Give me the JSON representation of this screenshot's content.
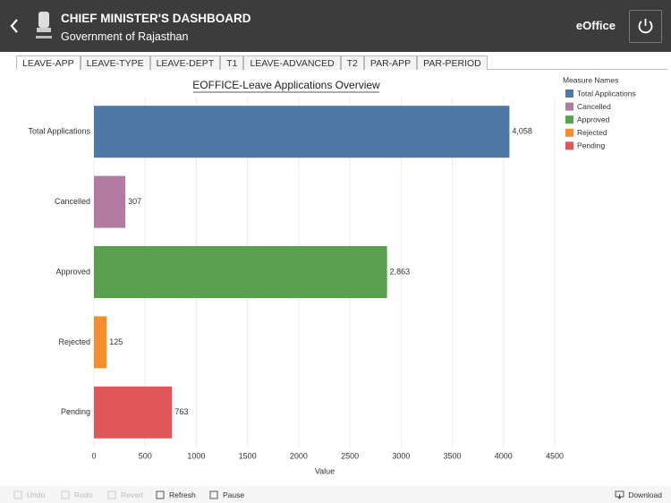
{
  "header": {
    "title": "CHIEF MINISTER'S DASHBOARD",
    "subtitle": "Government of Rajasthan",
    "app": "eOffice"
  },
  "tabs": [
    "LEAVE-APP",
    "LEAVE-TYPE",
    "LEAVE-DEPT",
    "T1",
    "LEAVE-ADVANCED",
    "T2",
    "PAR-APP",
    "PAR-PERIOD"
  ],
  "chart_data": {
    "type": "bar",
    "orientation": "horizontal",
    "title": "EOFFICE-Leave Applications Overview",
    "categories": [
      "Total Applications",
      "Cancelled",
      "Approved",
      "Rejected",
      "Pending"
    ],
    "values": [
      4058,
      307,
      2863,
      125,
      763
    ],
    "value_labels": [
      "4,058",
      "307",
      "2,863",
      "125",
      "763"
    ],
    "colors": [
      "#4e79a7",
      "#b07aa1",
      "#59a14f",
      "#f28e2b",
      "#e15759"
    ],
    "x_label": "Value",
    "xlim": [
      0,
      4500
    ],
    "xticks": [
      0,
      500,
      1000,
      1500,
      2000,
      2500,
      3000,
      3500,
      4000,
      4500
    ],
    "grid": true,
    "legend_title": "Measure Names"
  },
  "toolbar": {
    "left": [
      "Undo",
      "Redo",
      "Revert",
      "Refresh",
      "Pause"
    ],
    "right": "Download"
  }
}
